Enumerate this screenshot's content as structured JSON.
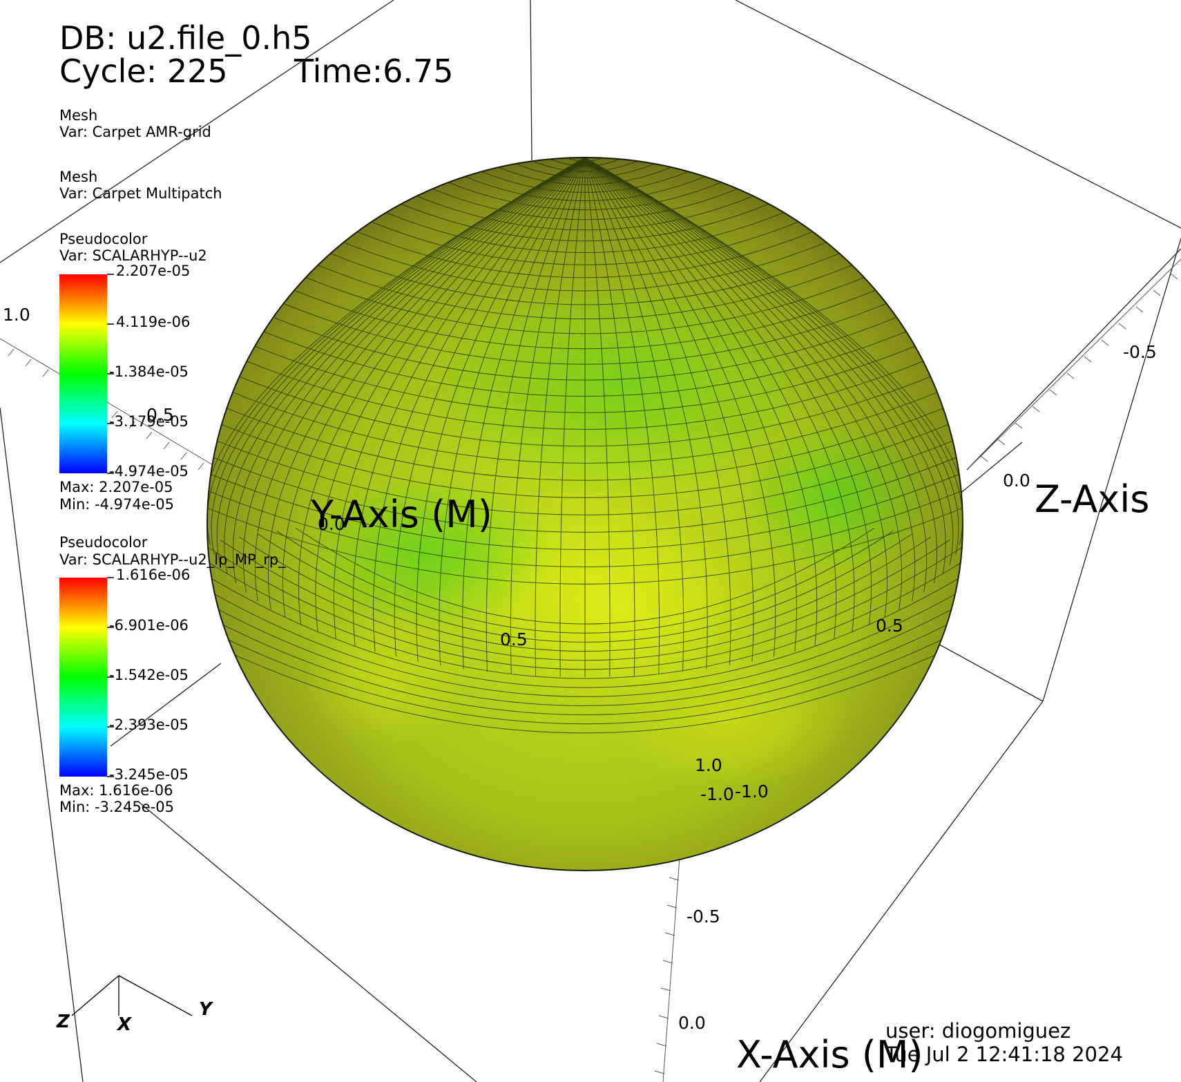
{
  "header": {
    "db": "DB: u2.file_0.h5",
    "cycle": "Cycle: 225",
    "time": "Time:6.75"
  },
  "plots": [
    {
      "type": "Mesh",
      "var": "Var: Carpet AMR-grid"
    },
    {
      "type": "Mesh",
      "var": "Var: Carpet Multipatch"
    },
    {
      "type": "Pseudocolor",
      "var": "Var: SCALARHYP--u2",
      "ticks": [
        "2.207e-05",
        "4.119e-06",
        "-1.384e-05",
        "-3.179e-05",
        "-4.974e-05"
      ],
      "max": "Max:  2.207e-05",
      "min": "Min: -4.974e-05"
    },
    {
      "type": "Pseudocolor",
      "var": "Var: SCALARHYP--u2_lp_MP_rp_",
      "ticks": [
        "1.616e-06",
        "-6.901e-06",
        "-1.542e-05",
        "-2.393e-05",
        "-3.245e-05"
      ],
      "max": "Max:  1.616e-06",
      "min": "Min: -3.245e-05"
    }
  ],
  "axes": {
    "x_title": "X-Axis (M)",
    "y_title": "Y-Axis (M)",
    "z_title": "Z-Axis",
    "tick_labels": [
      "1.0",
      "0.5",
      "0.0",
      "0.5",
      "1.0",
      "-0.5",
      "0.0",
      "0.5",
      "-1.0",
      "-1.0",
      "-0.5",
      "0.0"
    ]
  },
  "triad": {
    "x": "X",
    "y": "Y",
    "z": "Z"
  },
  "footer": {
    "user": "user: diogomiguez",
    "date": "Tue Jul  2 12:41:18 2024"
  },
  "colors": {
    "background": "#ffffff",
    "sphere_base": "#a6c219",
    "sphere_green": "#3fd41c",
    "sphere_yellow": "#d8ec14"
  }
}
